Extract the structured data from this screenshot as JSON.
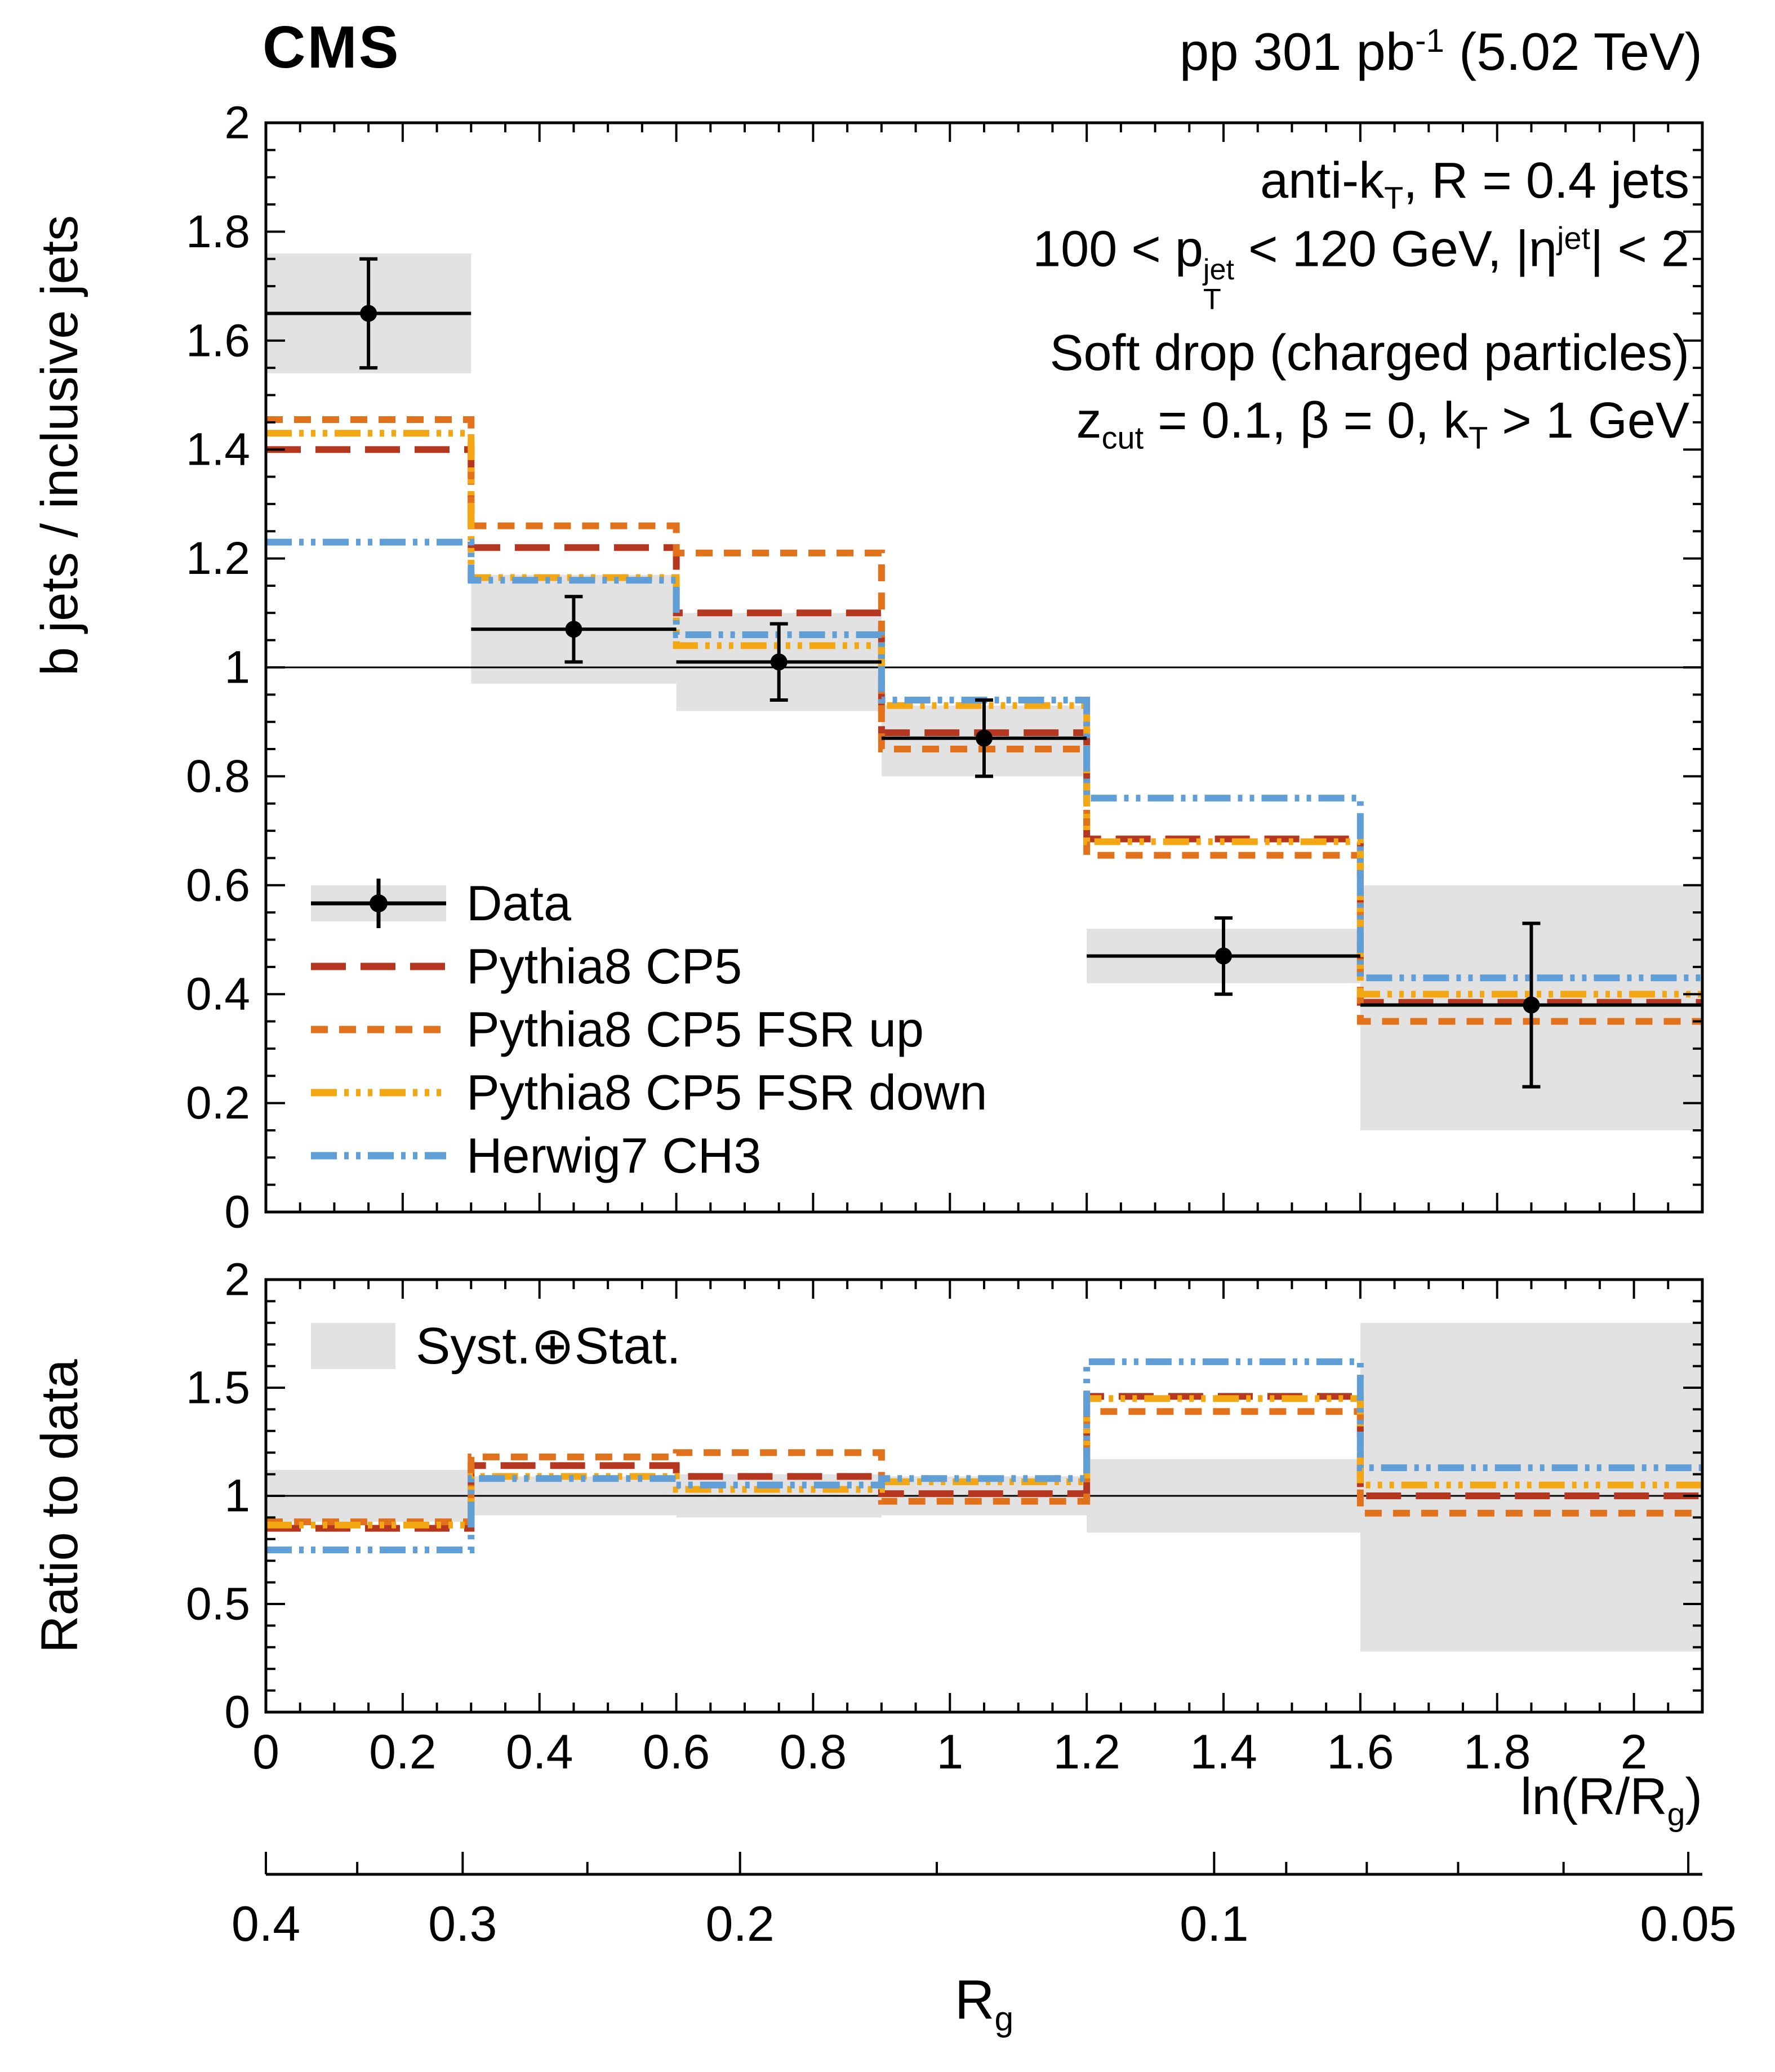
{
  "header": {
    "experiment": "CMS",
    "lumi_plain": "pp 301 pb⁻¹ (5.02 TeV)",
    "lumi_segs": [
      {
        "t": "pp 301 pb"
      },
      {
        "sup": "-1"
      },
      {
        "t": " (5.02 TeV)"
      }
    ]
  },
  "annotations": {
    "plain": [
      "anti-kT, R = 0.4 jets",
      "100 < pT(jet) < 120 GeV, |η(jet)| < 2",
      "Soft drop (charged particles)",
      "zcut = 0.1, β = 0, kT > 1 GeV"
    ],
    "segs": [
      [
        {
          "t": "anti-k"
        },
        {
          "sub": "T"
        },
        {
          "t": ", R = 0.4 jets"
        }
      ],
      [
        {
          "t": "100 < p"
        },
        {
          "sup": "jet",
          "sub": "T"
        },
        {
          "t": " < 120 GeV, |η"
        },
        {
          "sup": "jet"
        },
        {
          "t": "| < 2"
        }
      ],
      [
        {
          "t": "Soft drop (charged particles)"
        }
      ],
      [
        {
          "t": "z"
        },
        {
          "sub": "cut"
        },
        {
          "t": " = 0.1, β = 0, k"
        },
        {
          "sub": "T"
        },
        {
          "t": " > 1 GeV"
        }
      ]
    ]
  },
  "chart_data": {
    "type": "line",
    "style": "step-histogram-with-ratio-panel",
    "title": "CMS",
    "right_title": "pp 301 pb⁻¹ (5.02 TeV)",
    "x": {
      "label": "ln(R/Rg)",
      "label_segs": [
        {
          "t": "ln(R/R"
        },
        {
          "sub": "g"
        },
        {
          "t": ")"
        }
      ],
      "range": [
        0,
        2.1
      ],
      "major_ticks": [
        0,
        0.2,
        0.4,
        0.6,
        0.8,
        1,
        1.2,
        1.4,
        1.6,
        1.8,
        2
      ],
      "tick_labels": [
        "0",
        "0.2",
        "0.4",
        "0.6",
        "0.8",
        "1",
        "1.2",
        "1.4",
        "1.6",
        "1.8",
        "2"
      ],
      "minor_step": 0.05,
      "bin_edges": [
        0,
        0.3,
        0.6,
        0.9,
        1.2,
        1.6,
        2.1
      ]
    },
    "top_panel": {
      "ylabel": "b jets / inclusive jets",
      "ylim": [
        0,
        2
      ],
      "major_ticks": [
        0,
        0.2,
        0.4,
        0.6,
        0.8,
        1,
        1.2,
        1.4,
        1.6,
        1.8,
        2
      ],
      "tick_labels": [
        "0",
        "0.2",
        "0.4",
        "0.6",
        "0.8",
        "1",
        "1.2",
        "1.4",
        "1.6",
        "1.8",
        "2"
      ],
      "minor_step": 0.05,
      "reference_line_y": 1,
      "data": {
        "label": "Data",
        "x": [
          0.15,
          0.45,
          0.75,
          1.05,
          1.4,
          1.85
        ],
        "y": [
          1.65,
          1.07,
          1.01,
          0.87,
          0.47,
          0.38
        ],
        "stat_err": [
          0.1,
          0.06,
          0.07,
          0.07,
          0.07,
          0.15
        ],
        "syst_lo": [
          1.54,
          0.97,
          0.92,
          0.8,
          0.42,
          0.15
        ],
        "syst_hi": [
          1.76,
          1.17,
          1.1,
          0.93,
          0.52,
          0.6
        ]
      },
      "series": [
        {
          "name": "Pythia8 CP5",
          "color": "#b6371f",
          "dash": [
            62,
            26
          ],
          "values": [
            1.4,
            1.22,
            1.1,
            0.88,
            0.685,
            0.385
          ],
          "ratio": [
            0.85,
            1.14,
            1.09,
            1.01,
            1.46,
            1.0
          ]
        },
        {
          "name": "Pythia8 CP5 FSR up",
          "color": "#e2711c",
          "dash": [
            30,
            20
          ],
          "values": [
            1.455,
            1.26,
            1.21,
            0.85,
            0.655,
            0.35
          ],
          "ratio": [
            0.88,
            1.18,
            1.2,
            0.975,
            1.39,
            0.92
          ]
        },
        {
          "name": "Pythia8 CP5 FSR down",
          "color": "#f3a712",
          "dash": [
            46,
            13,
            8,
            13,
            8,
            13,
            8,
            13
          ],
          "values": [
            1.43,
            1.165,
            1.04,
            0.93,
            0.68,
            0.4
          ],
          "ratio": [
            0.865,
            1.09,
            1.03,
            1.065,
            1.45,
            1.05
          ]
        },
        {
          "name": "Herwig7 CH3",
          "color": "#5f9ed6",
          "dash": [
            46,
            13,
            8,
            13,
            8,
            13
          ],
          "values": [
            1.23,
            1.16,
            1.06,
            0.94,
            0.76,
            0.43
          ],
          "ratio": [
            0.75,
            1.08,
            1.05,
            1.08,
            1.62,
            1.13
          ]
        }
      ]
    },
    "ratio_panel": {
      "ylabel": "Ratio to data",
      "ylim": [
        0,
        2
      ],
      "major_ticks": [
        0,
        0.5,
        1,
        1.5,
        2
      ],
      "tick_labels": [
        "0",
        "0.5",
        "1",
        "1.5",
        "2"
      ],
      "minor_step": 0.1,
      "reference_line_y": 1,
      "band_label": "Syst.⊕Stat.",
      "band_lo": [
        0.88,
        0.91,
        0.9,
        0.91,
        0.83,
        0.28
      ],
      "band_hi": [
        1.12,
        1.09,
        1.1,
        1.09,
        1.17,
        1.8
      ]
    },
    "rg_axis": {
      "label": "Rg",
      "label_segs": [
        {
          "t": "R"
        },
        {
          "sub": "g"
        }
      ],
      "R": 0.4,
      "major_ticks": [
        0.4,
        0.3,
        0.2,
        0.1,
        0.05
      ],
      "tick_labels": [
        "0.4",
        "0.3",
        "0.2",
        "0.1",
        "0.05"
      ],
      "minor_ticks": [
        0.35,
        0.25,
        0.15,
        0.09,
        0.08,
        0.07,
        0.06
      ]
    },
    "colors": {
      "band": "#e2e2e2",
      "marker": "#000000",
      "frame": "#000000"
    }
  }
}
